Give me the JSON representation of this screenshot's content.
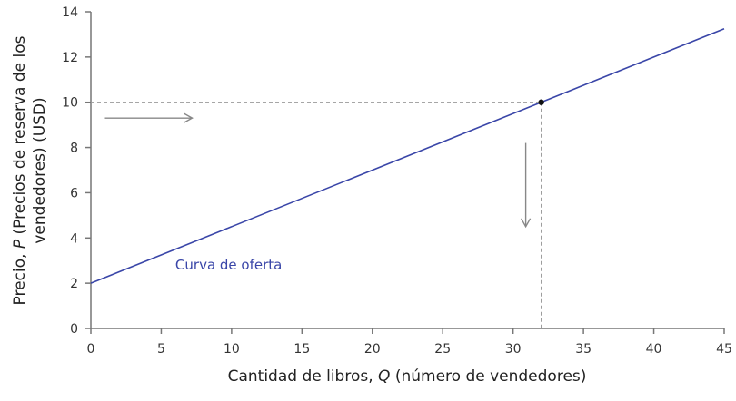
{
  "chart_data": {
    "type": "line",
    "xlabel": {
      "pre": "Cantidad de libros, ",
      "italic": "Q",
      "post": " (número de vendedores)"
    },
    "ylabel": {
      "line1_pre": "Precio, ",
      "line1_italic": "P",
      "line1_post": " (Precios de reserva de los",
      "line2": "vendedores) (USD)"
    },
    "xlim": [
      0,
      45
    ],
    "ylim": [
      0,
      14
    ],
    "xticks": [
      0,
      5,
      10,
      15,
      20,
      25,
      30,
      35,
      40,
      45
    ],
    "yticks": [
      0,
      2,
      4,
      6,
      8,
      10,
      12,
      14
    ],
    "grid": false,
    "series": [
      {
        "name": "Curva de oferta",
        "x": [
          0,
          45
        ],
        "y": [
          2,
          13.25
        ],
        "color": "#3a46a8"
      }
    ],
    "series_label": {
      "text": "Curva de oferta",
      "x": 6,
      "y": 2.6
    },
    "highlight_point": {
      "x": 32,
      "y": 10,
      "color": "#111111"
    },
    "reference_lines": {
      "color": "#999999",
      "style": "dashed"
    },
    "annotations": [
      {
        "type": "arrow",
        "direction": "right",
        "from": [
          1,
          9.3
        ],
        "to": [
          7.2,
          9.3
        ],
        "color": "#888888"
      },
      {
        "type": "arrow",
        "direction": "down",
        "from": [
          30.9,
          8.2
        ],
        "to": [
          30.9,
          4.5
        ],
        "color": "#888888"
      }
    ]
  }
}
